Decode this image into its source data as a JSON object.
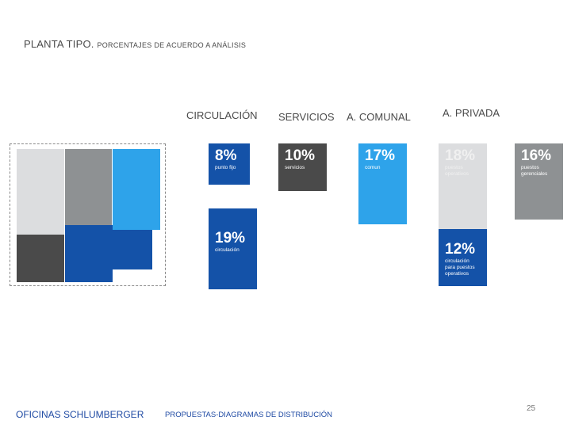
{
  "header": {
    "title_main": "PLANTA TIPO.",
    "title_sub": "PORCENTAJES DE ACUERDO A ANÁLISIS"
  },
  "colors": {
    "dark_blue": "#1452a8",
    "light_blue": "#2ea3ea",
    "dark_gray": "#4a4a4a",
    "mid_gray": "#8e9193",
    "light_gray": "#dcdddf",
    "text_blue": "#1f4aa3"
  },
  "chart_data": {
    "type": "bar",
    "categories": [
      "CIRCULACIÓN",
      "SERVICIOS",
      "A. COMUNAL",
      "A. PRIVADA"
    ],
    "blocks": [
      {
        "category": "CIRCULACIÓN",
        "value": 8,
        "label_pct": "8%",
        "label": "punto fijo"
      },
      {
        "category": "CIRCULACIÓN",
        "value": 19,
        "label_pct": "19%",
        "label": "circulación"
      },
      {
        "category": "SERVICIOS",
        "value": 10,
        "label_pct": "10%",
        "label": "servicios"
      },
      {
        "category": "A. COMUNAL",
        "value": 17,
        "label_pct": "17%",
        "label": "comun"
      },
      {
        "category": "A. PRIVADA",
        "value": 18,
        "label_pct": "18%",
        "label": "puestos operativos"
      },
      {
        "category": "A. PRIVADA",
        "value": 12,
        "label_pct": "12%",
        "label": "circulación para puestos operativos"
      },
      {
        "category": "A. PRIVADA",
        "value": 16,
        "label_pct": "16%",
        "label": "puestos gerenciales"
      }
    ]
  },
  "footer": {
    "left": "OFICINAS SCHLUMBERGER",
    "right": "PROPUESTAS-DIAGRAMAS DE DISTRIBUCIÓN",
    "page": "25"
  }
}
